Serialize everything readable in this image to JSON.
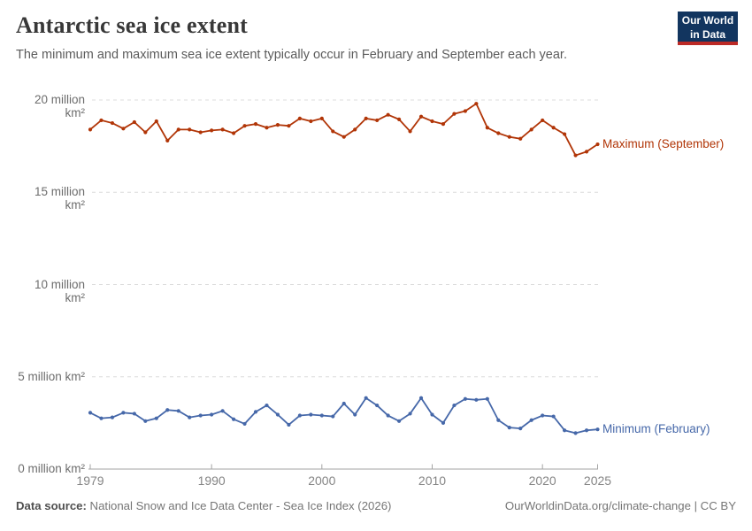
{
  "header": {
    "title": "Antarctic sea ice extent",
    "subtitle": "The minimum and maximum sea ice extent typically occur in February and September each year.",
    "logo_line1": "Our World",
    "logo_line2": "in Data"
  },
  "footer": {
    "source_label": "Data source:",
    "source_text": " National Snow and Ice Data Center - Sea Ice Index (2026)",
    "right_text": "OurWorldinData.org/climate-change | CC BY"
  },
  "colors": {
    "maximum_series": "#b13507",
    "minimum_series": "#4668a9",
    "gridline": "#dcdcdc",
    "axis": "#a3a3a3",
    "logo_navy": "#12355f",
    "logo_red": "#bc2a26"
  },
  "chart_data": {
    "type": "line",
    "title": "Antarctic sea ice extent",
    "x": [
      1979,
      1980,
      1981,
      1982,
      1983,
      1984,
      1985,
      1986,
      1987,
      1988,
      1989,
      1990,
      1991,
      1992,
      1993,
      1994,
      1995,
      1996,
      1997,
      1998,
      1999,
      2000,
      2001,
      2002,
      2003,
      2004,
      2005,
      2006,
      2007,
      2008,
      2009,
      2010,
      2011,
      2012,
      2013,
      2014,
      2015,
      2016,
      2017,
      2018,
      2019,
      2020,
      2021,
      2022,
      2023,
      2024,
      2025
    ],
    "series": [
      {
        "name": "Maximum (September)",
        "color": "#b13507",
        "values": [
          18.4,
          18.9,
          18.75,
          18.45,
          18.8,
          18.25,
          18.85,
          17.8,
          18.4,
          18.4,
          18.25,
          18.35,
          18.4,
          18.2,
          18.6,
          18.7,
          18.5,
          18.65,
          18.6,
          19.0,
          18.85,
          19.0,
          18.3,
          18.0,
          18.4,
          19.0,
          18.9,
          19.2,
          18.95,
          18.3,
          19.1,
          18.85,
          18.7,
          19.25,
          19.4,
          19.8,
          18.5,
          18.2,
          18.0,
          17.9,
          18.4,
          18.9,
          18.5,
          18.15,
          17.0,
          17.2,
          17.6
        ]
      },
      {
        "name": "Minimum (February)",
        "color": "#4668a9",
        "values": [
          3.05,
          2.75,
          2.8,
          3.05,
          3.0,
          2.6,
          2.75,
          3.2,
          3.15,
          2.8,
          2.9,
          2.95,
          3.15,
          2.7,
          2.45,
          3.1,
          3.45,
          2.95,
          2.4,
          2.9,
          2.95,
          2.9,
          2.85,
          3.55,
          2.95,
          3.85,
          3.45,
          2.9,
          2.6,
          3.0,
          3.85,
          2.95,
          2.5,
          3.45,
          3.8,
          3.75,
          3.8,
          2.65,
          2.25,
          2.2,
          2.65,
          2.9,
          2.85,
          2.1,
          1.95,
          2.1,
          2.15
        ]
      }
    ],
    "xlim": [
      1979,
      2025
    ],
    "ylim": [
      0,
      20
    ],
    "xticks": [
      1979,
      1990,
      2000,
      2010,
      2020,
      2025
    ],
    "yticks": [
      0,
      5,
      10,
      15,
      20
    ],
    "ytick_labels": [
      "0 million km²",
      "5 million km²",
      "10 million km²",
      "15 million km²",
      "20 million km²"
    ],
    "grid": "horizontal dashed",
    "legend_position": "right end-of-line labels"
  }
}
